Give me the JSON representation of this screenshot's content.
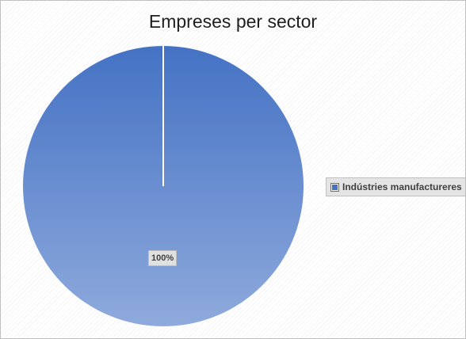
{
  "chart_data": {
    "type": "pie",
    "title": "Empreses per sector",
    "categories": [
      "Indústries manufactureres"
    ],
    "values": [
      100
    ],
    "data_labels": [
      "100%"
    ],
    "legend_position": "right",
    "colors": {
      "slice_top": "#4472c4",
      "slice_bottom": "#8faadc",
      "separator": "#ffffff"
    }
  }
}
